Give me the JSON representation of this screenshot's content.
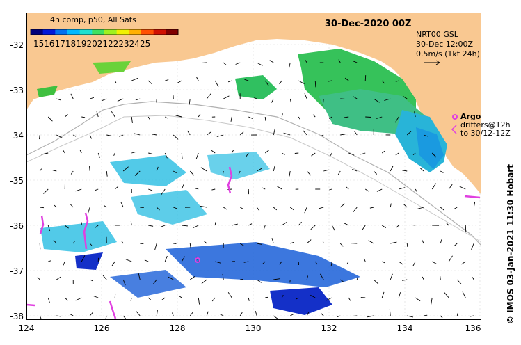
{
  "map": {
    "title": "30-Dec-2020 00Z",
    "colorbar_title": "4h comp, p50, All Sats",
    "colorbar_ticks": [
      "15",
      "16",
      "17",
      "18",
      "19",
      "20",
      "21",
      "22",
      "23",
      "24",
      "25"
    ],
    "info_line1": "NRT00 GSL",
    "info_line2": "30-Dec 12:00Z",
    "info_line3": "0.5m/s (1kt 24h)",
    "argo_label": "Argo",
    "drifters_line1": "drifters@12h",
    "drifters_line2": "to 30/12-12Z",
    "credit": "© IMOS 03-Jan-2021 11:30 Hobart",
    "lat_labels": [
      "-32",
      "-33",
      "-34",
      "-35",
      "-36",
      "-37",
      "-38"
    ],
    "lon_labels": [
      "124",
      "126",
      "128",
      "130",
      "132",
      "134",
      "136"
    ],
    "colors": {
      "land": "#f9c891",
      "sst_blue": "#1a3fcf",
      "sst_cyan": "#14b8e6",
      "sst_green": "#2fbf6a",
      "argo": "#e040e0",
      "bathymetry": "#b0b0b0"
    },
    "colorbar_colors": [
      "#00007a",
      "#0018d8",
      "#0070f0",
      "#00b8ff",
      "#20e0d0",
      "#40e060",
      "#a0f020",
      "#f0f000",
      "#ffb000",
      "#ff5000",
      "#d01000",
      "#800000"
    ]
  }
}
